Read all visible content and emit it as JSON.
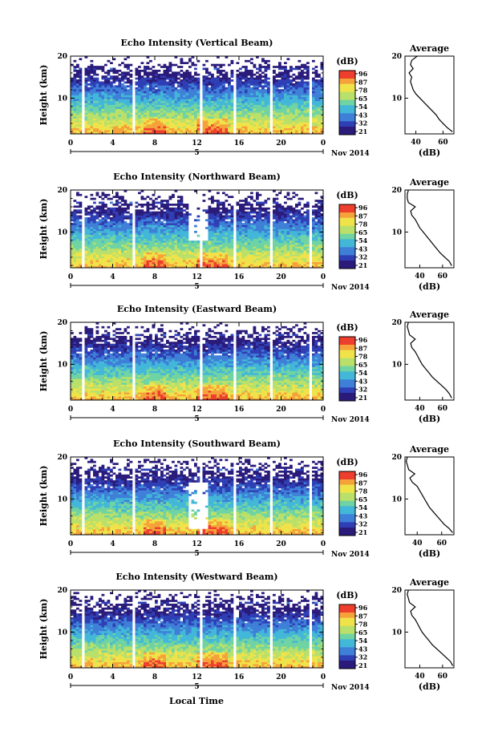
{
  "xlabel": "Local Time",
  "date_label": "Nov 2014",
  "day_label": "5",
  "x_ticks": [
    "0",
    "4",
    "8",
    "12",
    "16",
    "20",
    "0"
  ],
  "y_ticks": [
    "20",
    "10"
  ],
  "ylabel": "Height (km)",
  "colorbar": {
    "unit": "(dB)",
    "ticks": [
      "96",
      "87",
      "78",
      "65",
      "54",
      "43",
      "32",
      "21"
    ],
    "colors": [
      "#2a1a7a",
      "#2e3fb5",
      "#3e7fd8",
      "#42b7d8",
      "#6fd3a3",
      "#b8e06a",
      "#f0e34a",
      "#f6a23a",
      "#ee3e2d"
    ]
  },
  "avg_title": "Average",
  "avg_xlabel": "(dB)",
  "chart_data": [
    {
      "type": "heatmap",
      "title": "Echo Intensity (Vertical Beam)",
      "xlabel": "",
      "ylabel": "Height (km)",
      "x_range": [
        0,
        24
      ],
      "y_range": [
        1.5,
        20
      ],
      "gap_hours": [
        1.3,
        6.0,
        12.3,
        15.7,
        19.1,
        22.7
      ],
      "profile_xticks": [
        "40",
        "60"
      ],
      "profile": {
        "x_range": [
          32,
          68
        ],
        "heights": [
          2,
          3,
          4,
          5,
          6,
          7,
          8,
          9,
          10,
          11,
          12,
          13,
          14,
          15,
          16,
          17,
          18,
          19,
          20
        ],
        "values": [
          67,
          63,
          60,
          57,
          55,
          52,
          49,
          46,
          43,
          40,
          38,
          37,
          36,
          37,
          35,
          38,
          36,
          37,
          41
        ]
      }
    },
    {
      "type": "heatmap",
      "title": "Echo Intensity (Northward Beam)",
      "xlabel": "",
      "ylabel": "Height (km)",
      "x_range": [
        0,
        24
      ],
      "y_range": [
        1.5,
        20
      ],
      "gap_hours": [
        1.3,
        6.0,
        12.3,
        15.7,
        19.1,
        22.7
      ],
      "profile_xticks": [
        "40",
        "60"
      ],
      "profile": {
        "x_range": [
          27,
          70
        ],
        "heights": [
          2,
          3,
          4,
          5,
          6,
          7,
          8,
          9,
          10,
          11,
          12,
          13,
          14,
          15,
          16,
          17,
          18,
          19,
          20
        ],
        "values": [
          68,
          66,
          62,
          58,
          55,
          52,
          49,
          46,
          43,
          40,
          38,
          36,
          33,
          32,
          36,
          30,
          29,
          29,
          30
        ]
      }
    },
    {
      "type": "heatmap",
      "title": "Echo Intensity (Eastward Beam)",
      "xlabel": "",
      "ylabel": "Height (km)",
      "x_range": [
        0,
        24
      ],
      "y_range": [
        1.5,
        20
      ],
      "gap_hours": [
        1.3,
        6.0,
        12.3,
        15.7,
        19.1,
        22.7
      ],
      "profile_xticks": [
        "40",
        "60"
      ],
      "profile": {
        "x_range": [
          27,
          70
        ],
        "heights": [
          2,
          3,
          4,
          5,
          6,
          7,
          8,
          9,
          10,
          11,
          12,
          13,
          14,
          15,
          16,
          17,
          18,
          19,
          20
        ],
        "values": [
          68,
          66,
          63,
          59,
          55,
          51,
          48,
          45,
          42,
          40,
          38,
          36,
          33,
          32,
          36,
          31,
          30,
          29,
          30
        ]
      }
    },
    {
      "type": "heatmap",
      "title": "Echo Intensity (Southward Beam)",
      "xlabel": "",
      "ylabel": "Height (km)",
      "x_range": [
        0,
        24
      ],
      "y_range": [
        1.5,
        20
      ],
      "gap_hours": [
        1.3,
        6.0,
        12.3,
        15.7,
        19.1,
        22.7
      ],
      "profile_xticks": [
        "40",
        "60"
      ],
      "profile": {
        "x_range": [
          30,
          70
        ],
        "heights": [
          2,
          3,
          4,
          5,
          6,
          7,
          8,
          9,
          10,
          11,
          12,
          13,
          14,
          15,
          16,
          17,
          18,
          19,
          20
        ],
        "values": [
          69,
          66,
          62,
          59,
          56,
          53,
          50,
          48,
          46,
          44,
          42,
          40,
          36,
          34,
          38,
          33,
          32,
          31,
          32
        ]
      }
    },
    {
      "type": "heatmap",
      "title": "Echo Intensity (Westward Beam)",
      "xlabel": "Local Time",
      "ylabel": "Height (km)",
      "x_range": [
        0,
        24
      ],
      "y_range": [
        1.5,
        20
      ],
      "gap_hours": [
        1.3,
        6.0,
        12.3,
        15.7,
        19.1,
        22.7
      ],
      "profile_xticks": [
        "40",
        "60"
      ],
      "profile": {
        "x_range": [
          27,
          70
        ],
        "heights": [
          2,
          3,
          4,
          5,
          6,
          7,
          8,
          9,
          10,
          11,
          12,
          13,
          14,
          15,
          16,
          17,
          18,
          19,
          20
        ],
        "values": [
          69,
          67,
          63,
          59,
          55,
          51,
          48,
          45,
          42,
          40,
          38,
          36,
          33,
          32,
          36,
          31,
          30,
          29,
          30
        ]
      }
    }
  ]
}
